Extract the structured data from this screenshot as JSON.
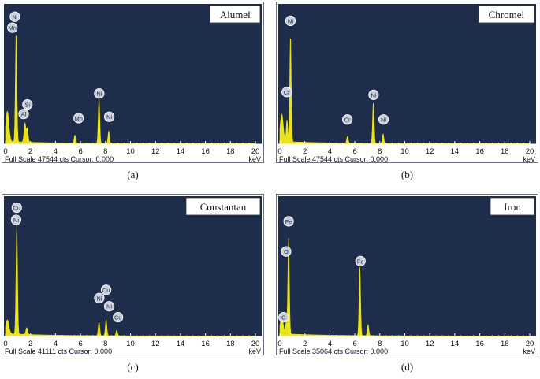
{
  "chart_data": [
    {
      "type": "line",
      "name_box": "Alumel",
      "caption": "(a)",
      "xlabel": "keV",
      "footer": "Full Scale 47544 cts Cursor: 0.000",
      "xlim": [
        0,
        20
      ],
      "ylim": [
        0,
        1
      ],
      "x_ticks": [
        "0",
        "2",
        "4",
        "6",
        "8",
        "10",
        "12",
        "14",
        "16",
        "18",
        "20"
      ],
      "colors": {
        "plot_bg": "#1e2d4c",
        "spectrum": "#e8e31a",
        "label_fill": "#c9cfdb"
      },
      "peaks": [
        {
          "x": 0.85,
          "y": 0.8,
          "w": 0.06
        },
        {
          "x": 1.55,
          "y": 0.14,
          "w": 0.07
        },
        {
          "x": 1.74,
          "y": 0.1,
          "w": 0.07
        },
        {
          "x": 5.55,
          "y": 0.06,
          "w": 0.06
        },
        {
          "x": 7.48,
          "y": 0.33,
          "w": 0.06
        },
        {
          "x": 8.26,
          "y": 0.09,
          "w": 0.06
        },
        {
          "x": 0.15,
          "y": 0.22,
          "w": 0.12
        }
      ],
      "labels": [
        {
          "text": "Ni",
          "x": 0.75,
          "y": 0.93
        },
        {
          "text": "Mn",
          "x": 0.55,
          "y": 0.85
        },
        {
          "text": "Si",
          "x": 1.75,
          "y": 0.29
        },
        {
          "text": "Al",
          "x": 1.45,
          "y": 0.22
        },
        {
          "text": "Mn",
          "x": 5.85,
          "y": 0.19
        },
        {
          "text": "Ni",
          "x": 7.5,
          "y": 0.37
        },
        {
          "text": "Ni",
          "x": 8.3,
          "y": 0.2
        }
      ]
    },
    {
      "type": "line",
      "name_box": "Chromel",
      "caption": "(b)",
      "xlabel": "keV",
      "footer": "Full Scale 47544 cts Cursor: 0.000",
      "xlim": [
        0,
        20
      ],
      "ylim": [
        0,
        1
      ],
      "x_ticks": [
        "0",
        "2",
        "4",
        "6",
        "8",
        "10",
        "12",
        "14",
        "16",
        "18",
        "20"
      ],
      "colors": {
        "plot_bg": "#1e2d4c",
        "spectrum": "#e8e31a",
        "label_fill": "#c9cfdb"
      },
      "peaks": [
        {
          "x": 0.85,
          "y": 0.78,
          "w": 0.06
        },
        {
          "x": 0.57,
          "y": 0.16,
          "w": 0.06
        },
        {
          "x": 5.41,
          "y": 0.05,
          "w": 0.06
        },
        {
          "x": 7.48,
          "y": 0.3,
          "w": 0.06
        },
        {
          "x": 8.26,
          "y": 0.07,
          "w": 0.06
        },
        {
          "x": 0.15,
          "y": 0.2,
          "w": 0.12
        }
      ],
      "labels": [
        {
          "text": "Ni",
          "x": 0.85,
          "y": 0.9
        },
        {
          "text": "Cr",
          "x": 0.55,
          "y": 0.38
        },
        {
          "text": "Cr",
          "x": 5.4,
          "y": 0.18
        },
        {
          "text": "Ni",
          "x": 7.5,
          "y": 0.36
        },
        {
          "text": "Ni",
          "x": 8.3,
          "y": 0.18
        }
      ]
    },
    {
      "type": "line",
      "name_box": "Constantan",
      "caption": "(c)",
      "xlabel": "keV",
      "footer": "Full Scale 41111 cts Cursor: 0.000",
      "xlim": [
        0,
        20
      ],
      "ylim": [
        0,
        1
      ],
      "x_ticks": [
        "0",
        "2",
        "4",
        "6",
        "8",
        "10",
        "12",
        "14",
        "16",
        "18",
        "20"
      ],
      "colors": {
        "plot_bg": "#1e2d4c",
        "spectrum": "#e8e31a",
        "label_fill": "#c9cfdb"
      },
      "peaks": [
        {
          "x": 0.9,
          "y": 0.8,
          "w": 0.06
        },
        {
          "x": 1.7,
          "y": 0.05,
          "w": 0.07
        },
        {
          "x": 7.48,
          "y": 0.1,
          "w": 0.06
        },
        {
          "x": 8.05,
          "y": 0.12,
          "w": 0.06
        },
        {
          "x": 8.9,
          "y": 0.04,
          "w": 0.06
        },
        {
          "x": 0.15,
          "y": 0.1,
          "w": 0.12
        }
      ],
      "labels": [
        {
          "text": "Cu",
          "x": 0.9,
          "y": 0.94
        },
        {
          "text": "Ni",
          "x": 0.85,
          "y": 0.85
        },
        {
          "text": "Ni",
          "x": 7.5,
          "y": 0.28
        },
        {
          "text": "Cu",
          "x": 8.05,
          "y": 0.34
        },
        {
          "text": "Ni",
          "x": 8.3,
          "y": 0.22
        },
        {
          "text": "Cu",
          "x": 9.0,
          "y": 0.14
        }
      ]
    },
    {
      "type": "line",
      "name_box": "Iron",
      "caption": "(d)",
      "xlabel": "keV",
      "footer": "Full Scale 35064 cts Cursor: 0.000",
      "xlim": [
        0,
        20
      ],
      "ylim": [
        0,
        1
      ],
      "x_ticks": [
        "0",
        "2",
        "4",
        "6",
        "8",
        "10",
        "12",
        "14",
        "16",
        "18",
        "20"
      ],
      "colors": {
        "plot_bg": "#1e2d4c",
        "spectrum": "#e8e31a",
        "label_fill": "#c9cfdb"
      },
      "peaks": [
        {
          "x": 0.7,
          "y": 0.7,
          "w": 0.06
        },
        {
          "x": 0.52,
          "y": 0.1,
          "w": 0.05
        },
        {
          "x": 6.4,
          "y": 0.5,
          "w": 0.06
        },
        {
          "x": 7.06,
          "y": 0.08,
          "w": 0.06
        },
        {
          "x": 0.15,
          "y": 0.12,
          "w": 0.12
        }
      ],
      "labels": [
        {
          "text": "Fe",
          "x": 0.7,
          "y": 0.84
        },
        {
          "text": "O",
          "x": 0.5,
          "y": 0.62
        },
        {
          "text": "C",
          "x": 0.3,
          "y": 0.14
        },
        {
          "text": "Fe",
          "x": 6.45,
          "y": 0.55
        }
      ]
    }
  ]
}
